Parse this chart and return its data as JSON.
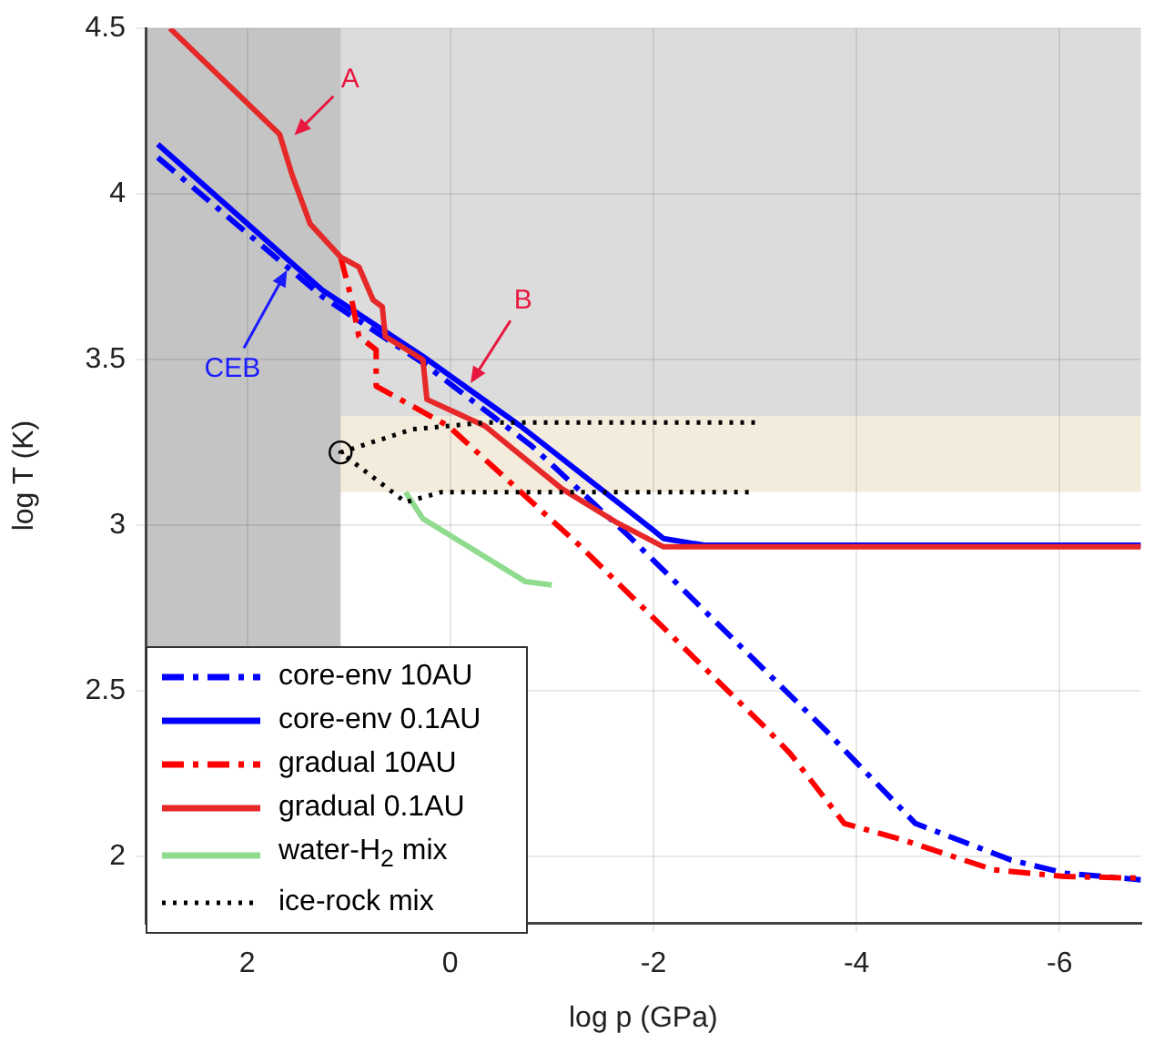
{
  "chart_data": {
    "type": "line",
    "xlabel": "log p (GPa)",
    "ylabel": "log T (K)",
    "xlim": [
      3,
      -6.8
    ],
    "xticks": [
      2,
      0,
      -2,
      -4,
      -6
    ],
    "ylim": [
      1.8,
      4.5
    ],
    "yticks": [
      2,
      2.5,
      3,
      3.5,
      4,
      4.5
    ],
    "grid": true,
    "legend": "bottom left",
    "bands": [
      {
        "axis": "y",
        "from": 3.1,
        "to": 3.33,
        "color": "#f3ebdc"
      },
      {
        "axis": "y",
        "from": 3.33,
        "to": 4.5,
        "color": "#dcdcdc"
      },
      {
        "axis": "x",
        "from": 3,
        "to": 1.08,
        "color": "#c4c4c4"
      }
    ],
    "series": [
      {
        "name": "core-env 10AU",
        "color": "#0000ff",
        "line_style": "dashed",
        "x": [
          2.88,
          1.26,
          0.27,
          -0.8,
          -1.75,
          -3.7,
          -3.98,
          -4.58,
          -5.52,
          -6.05,
          -6.8
        ],
        "values": [
          4.11,
          3.69,
          3.49,
          3.24,
          2.97,
          2.38,
          2.29,
          2.1,
          1.99,
          1.95,
          1.93
        ]
      },
      {
        "name": "core-env 0.1AU",
        "color": "#0000ff",
        "line_style": "solid",
        "x": [
          2.88,
          1.26,
          0.27,
          -0.69,
          -1.98,
          -2.1,
          -2.5,
          -6.8
        ],
        "values": [
          4.15,
          3.71,
          3.51,
          3.3,
          2.99,
          2.96,
          2.94,
          2.94
        ]
      },
      {
        "name": "gradual 10AU",
        "color": "#ff0000",
        "line_style": "dashed",
        "x": [
          1.08,
          0.97,
          0.9,
          0.73,
          0.73,
          0.02,
          -1.27,
          -3.1,
          -3.35,
          -3.88,
          -4.46,
          -5.35,
          -6.05,
          -6.8
        ],
        "values": [
          3.81,
          3.68,
          3.57,
          3.53,
          3.42,
          3.3,
          2.94,
          2.39,
          2.31,
          2.1,
          2.05,
          1.96,
          1.94,
          1.935
        ]
      },
      {
        "name": "gradual 0.1AU",
        "color": "#e62828",
        "line_style": "solid",
        "x": [
          2.76,
          1.68,
          1.56,
          1.38,
          1.08,
          0.9,
          0.76,
          0.67,
          0.64,
          0.27,
          0.23,
          -0.34,
          -1.1,
          -1.63,
          -2.1,
          -6.8
        ],
        "values": [
          4.5,
          4.18,
          4.06,
          3.91,
          3.81,
          3.78,
          3.68,
          3.66,
          3.57,
          3.5,
          3.38,
          3.3,
          3.11,
          3.01,
          2.935,
          2.935
        ]
      },
      {
        "name": "water-H$_{2}$ mix",
        "color": "#8fdc8f",
        "line_style": "solid",
        "x": [
          0.44,
          0.27,
          -0.74,
          -1.0
        ],
        "values": [
          3.1,
          3.02,
          2.83,
          2.82
        ]
      },
      {
        "name": "ice-rock mix",
        "color": "#000000",
        "line_style": "dotted",
        "x": [
          -3.0,
          -0.34,
          0.37,
          1.08,
          0.44,
          0.09,
          -3.0
        ],
        "values": [
          3.31,
          3.31,
          3.29,
          3.22,
          3.07,
          3.1,
          3.1
        ]
      },
      {
        "type": "scatter",
        "color": "#000000",
        "marker": "circle",
        "x": [
          1.08
        ],
        "values": [
          3.22
        ]
      }
    ],
    "annotations": [
      {
        "text": "A",
        "x": 1.56,
        "y": 4.17
      },
      {
        "text": "B",
        "x": -0.18,
        "y": 3.42
      },
      {
        "text": "CEB",
        "x": 1.59,
        "y": 3.78
      }
    ]
  }
}
